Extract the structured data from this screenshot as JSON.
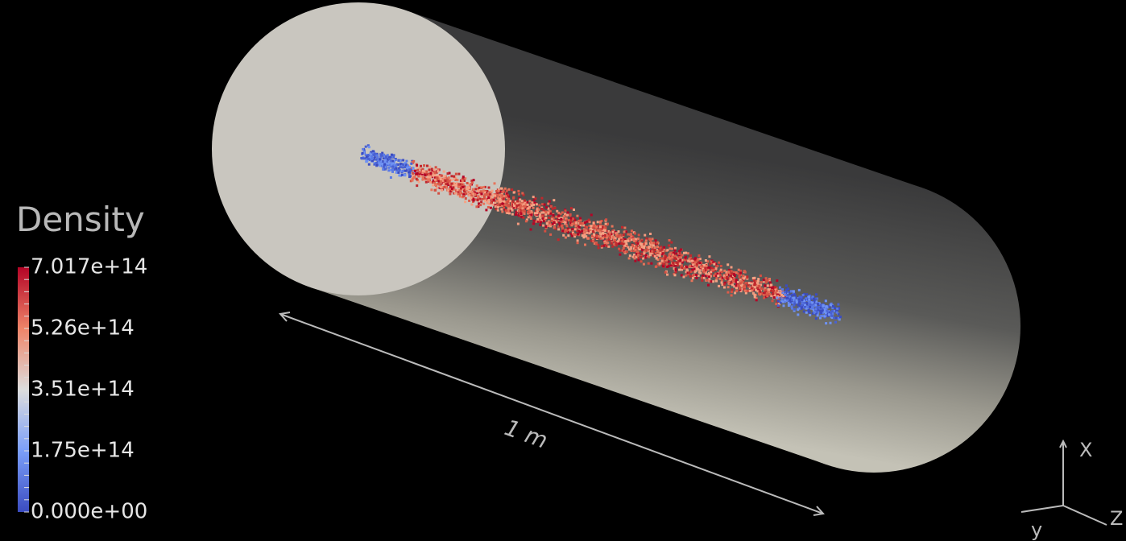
{
  "legend": {
    "title": "Density",
    "ticks": [
      "7.017e+14",
      "5.26e+14",
      "3.51e+14",
      "1.75e+14",
      "0.000e+00"
    ]
  },
  "scale_label": "1 m",
  "axes": {
    "x": "X",
    "y": "y",
    "z": "Z"
  }
}
